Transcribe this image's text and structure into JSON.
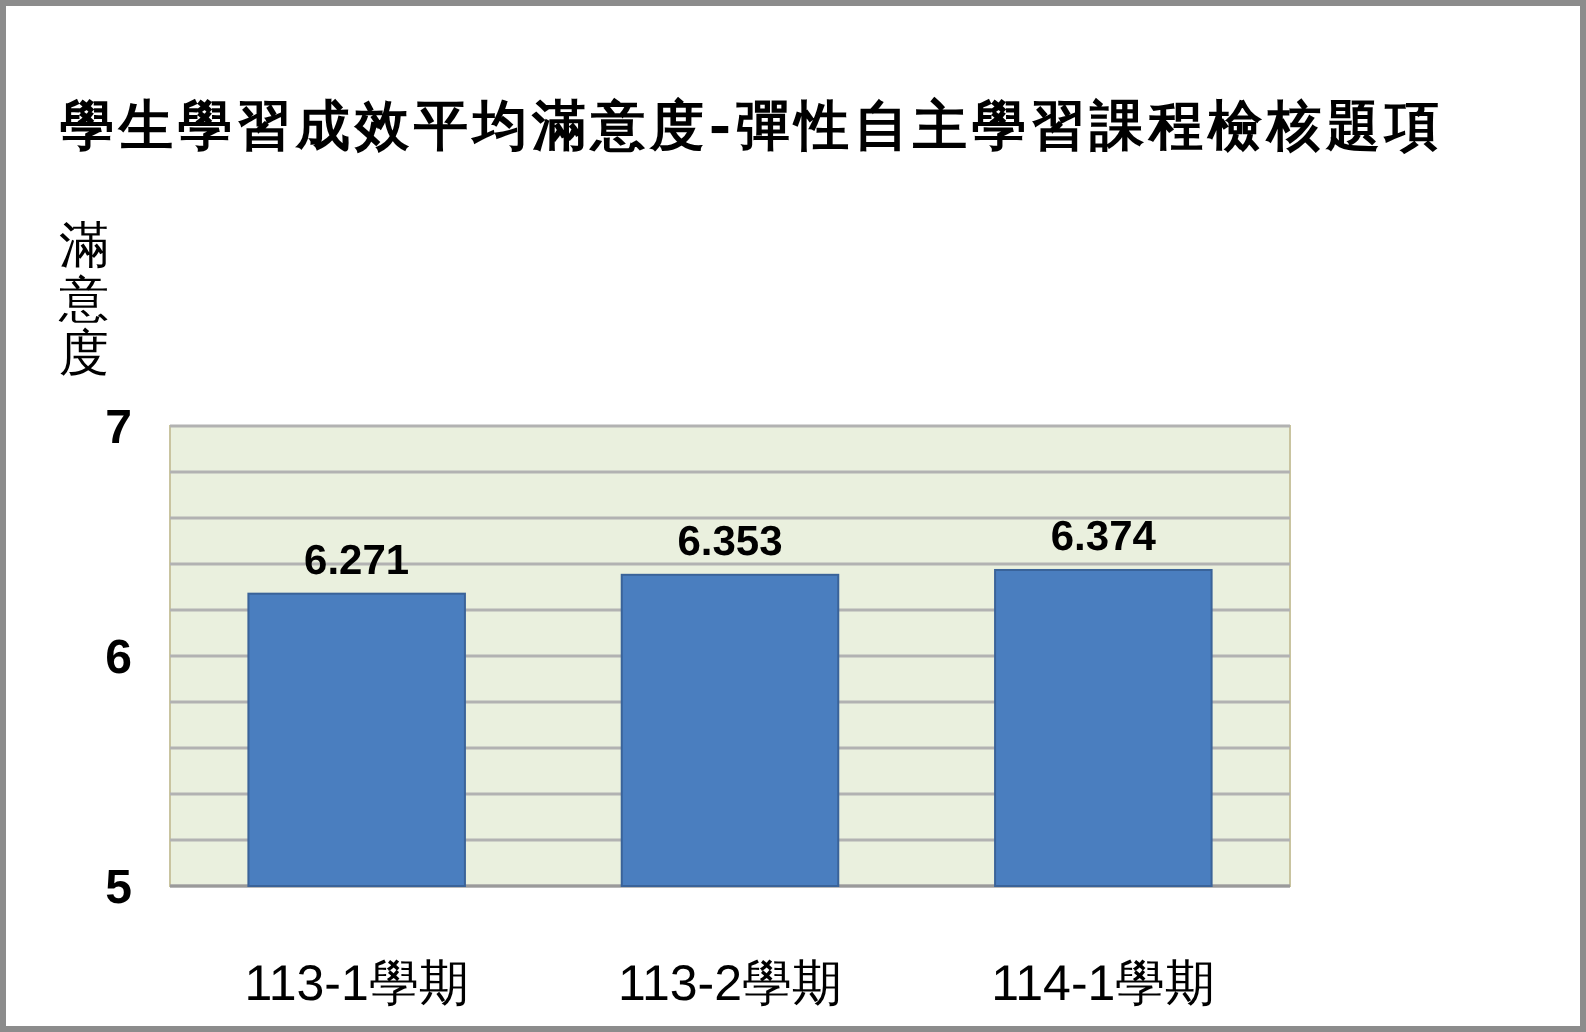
{
  "chart_data": {
    "type": "bar",
    "title": "學生學習成效平均滿意度-彈性自主學習課程檢核題項",
    "ylabel": "滿意度",
    "categories": [
      "113-1學期",
      "113-2學期",
      "114-1學期"
    ],
    "values": [
      6.271,
      6.353,
      6.374
    ],
    "color": "#4a7ebf",
    "ylim": [
      5,
      7
    ],
    "yticks": [
      5,
      {
        "value": 5.2,
        "label": null
      },
      {
        "value": 5.4,
        "label": null
      },
      {
        "value": 5.6,
        "label": null
      },
      {
        "value": 5.8,
        "label": null
      },
      6,
      {
        "value": 6.2,
        "label": null
      },
      {
        "value": 6.4,
        "label": null
      },
      {
        "value": 6.6,
        "label": null
      },
      {
        "value": 6.8,
        "label": null
      },
      7
    ],
    "grid": "y",
    "data_labels": true
  }
}
